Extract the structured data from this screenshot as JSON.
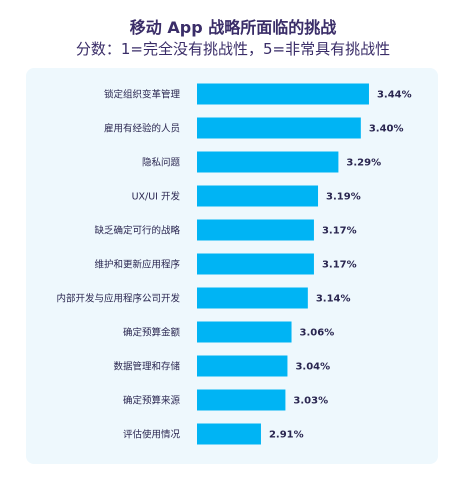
{
  "title": "移动 App 战略所面临的挑战",
  "subtitle": "分数：1=完全没有挑战性，5=非常具有挑战性",
  "colors": {
    "bar": "#00b4f4",
    "panel": "#eef8fd",
    "text": "#2a2650"
  },
  "chart_data": {
    "type": "bar",
    "orientation": "horizontal",
    "categories": [
      "锁定组织变革管理",
      "雇用有经验的人员",
      "隐私问题",
      "UX/UI 开发",
      "缺乏确定可行的战略",
      "维护和更新应用程序",
      "内部开发与应用程序公司开发",
      "确定预算金额",
      "数据管理和存储",
      "确定预算来源",
      "评估使用情况"
    ],
    "values": [
      3.44,
      3.4,
      3.29,
      3.19,
      3.17,
      3.17,
      3.14,
      3.06,
      3.04,
      3.03,
      2.91
    ],
    "value_labels": [
      "3.44%",
      "3.40%",
      "3.29%",
      "3.19%",
      "3.17%",
      "3.17%",
      "3.14%",
      "3.06%",
      "3.04%",
      "3.03%",
      "2.91%"
    ],
    "title": "移动 App 战略所面临的挑战",
    "xlabel": "",
    "ylabel": "",
    "grid": false
  }
}
